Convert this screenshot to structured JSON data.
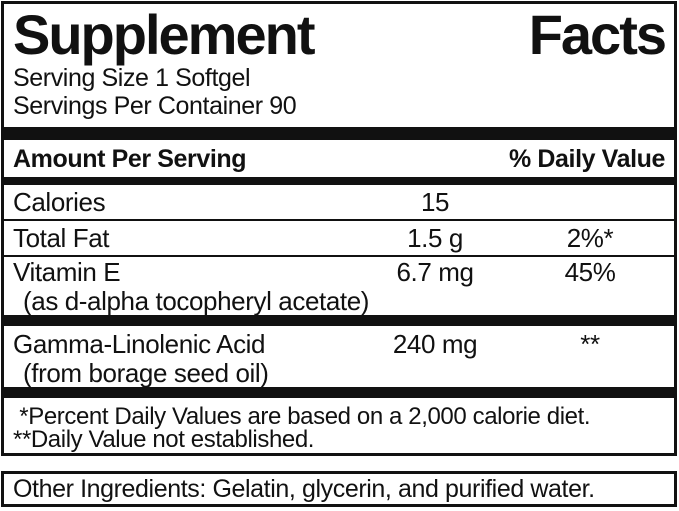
{
  "label": {
    "title": {
      "word1": "Supplement",
      "word2": "Facts"
    },
    "serving_size": "Serving Size 1 Softgel",
    "servings_per_container": "Servings Per Container 90",
    "header": {
      "left": "Amount Per Serving",
      "right": "% Daily Value"
    },
    "rows": [
      {
        "name": "Calories",
        "amount": "15",
        "dv": ""
      },
      {
        "name": "Total Fat",
        "amount": "1.5 g",
        "dv": "2%*"
      },
      {
        "name": "Vitamin E",
        "sub": "(as d-alpha tocopheryl acetate)",
        "amount": "6.7 mg",
        "dv": "45%"
      },
      {
        "name": "Gamma-Linolenic Acid",
        "sub": "(from borage seed oil)",
        "amount": "240 mg",
        "dv": "**"
      }
    ],
    "footnotes": [
      " *Percent Daily Values are based on a 2,000 calorie diet.",
      "**Daily Value not established."
    ],
    "other_ingredients": "Other Ingredients: Gelatin, glycerin, and purified water.",
    "colors": {
      "ink": "#111111",
      "background": "#ffffff"
    }
  }
}
